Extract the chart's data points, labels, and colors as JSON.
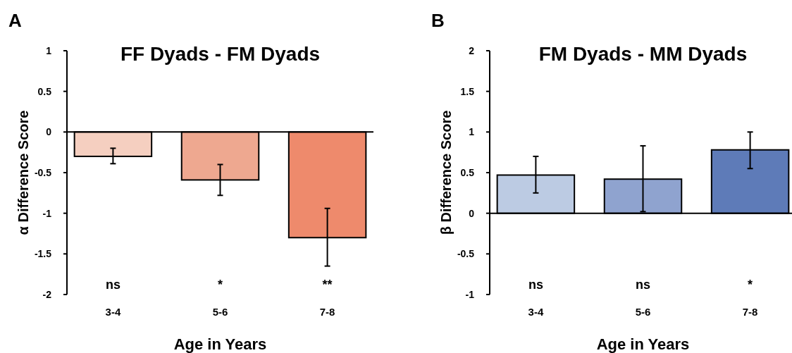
{
  "chart_data": [
    {
      "type": "bar",
      "title": "FF Dyads - FM Dyads",
      "xlabel": "Age in Years",
      "ylabel": "α Difference Score",
      "categories": [
        "3-4",
        "5-6",
        "7-8"
      ],
      "values": [
        -0.3,
        -0.59,
        -1.3
      ],
      "colors": [
        "#f5cfc0",
        "#eea890",
        "#ee8a6c"
      ],
      "errors": [
        [
          -0.39,
          -0.2
        ],
        [
          -0.78,
          -0.4
        ],
        [
          -1.65,
          -0.94
        ]
      ],
      "ylim": [
        -2,
        1
      ],
      "yticks": [
        -2,
        -1.5,
        -1,
        -0.5,
        0,
        0.5,
        1
      ],
      "annotations": [
        "A",
        "ns",
        "*",
        "**"
      ]
    },
    {
      "type": "bar",
      "title": "FM Dyads - MM Dyads",
      "xlabel": "Age in Years",
      "ylabel": "β Difference Score",
      "categories": [
        "3-4",
        "5-6",
        "7-8"
      ],
      "values": [
        0.47,
        0.42,
        0.78
      ],
      "colors": [
        "#bccbe3",
        "#8fa3cf",
        "#5e7bb8"
      ],
      "errors": [
        [
          0.25,
          0.7
        ],
        [
          0.02,
          0.83
        ],
        [
          0.55,
          1.0
        ]
      ],
      "ylim": [
        -1,
        2
      ],
      "yticks": [
        -1,
        -0.5,
        0,
        0.5,
        1,
        1.5,
        2
      ],
      "annotations": [
        "B",
        "ns",
        "ns",
        "*"
      ]
    }
  ]
}
